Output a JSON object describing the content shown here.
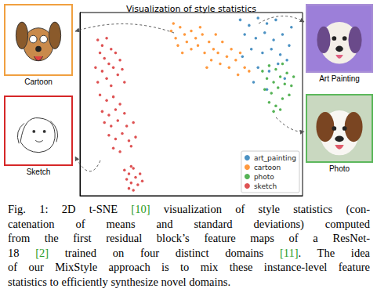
{
  "chart_data": {
    "type": "scatter",
    "title": "Visualization of style statistics",
    "xlim": [
      0,
      100
    ],
    "ylim": [
      0,
      100
    ],
    "tick_labels": false,
    "grid": false,
    "legend": "lower right",
    "series": [
      {
        "name": "art_painting",
        "color": "#1f77b4",
        "values": [
          [
            72,
            96
          ],
          [
            76,
            93
          ],
          [
            80,
            97
          ],
          [
            84,
            94
          ],
          [
            88,
            96
          ],
          [
            74,
            88
          ],
          [
            79,
            86
          ],
          [
            83,
            89
          ],
          [
            87,
            85
          ],
          [
            91,
            88
          ],
          [
            77,
            80
          ],
          [
            82,
            78
          ],
          [
            86,
            80
          ],
          [
            90,
            77
          ],
          [
            94,
            82
          ],
          [
            80,
            70
          ],
          [
            85,
            68
          ],
          [
            89,
            72
          ],
          [
            93,
            74
          ],
          [
            78,
            62
          ],
          [
            84,
            58
          ],
          [
            92,
            64
          ],
          [
            95,
            92
          ],
          [
            73,
            76
          ]
        ]
      },
      {
        "name": "cartoon",
        "color": "#ff7f0e",
        "values": [
          [
            41,
            90
          ],
          [
            43,
            86
          ],
          [
            45,
            92
          ],
          [
            47,
            88
          ],
          [
            44,
            82
          ],
          [
            48,
            84
          ],
          [
            50,
            90
          ],
          [
            52,
            86
          ],
          [
            46,
            78
          ],
          [
            50,
            80
          ],
          [
            53,
            82
          ],
          [
            55,
            88
          ],
          [
            56,
            78
          ],
          [
            58,
            84
          ],
          [
            60,
            80
          ],
          [
            59,
            74
          ],
          [
            62,
            78
          ],
          [
            64,
            84
          ],
          [
            63,
            72
          ],
          [
            66,
            76
          ],
          [
            68,
            80
          ],
          [
            67,
            70
          ],
          [
            70,
            74
          ],
          [
            72,
            78
          ],
          [
            71,
            66
          ],
          [
            74,
            70
          ],
          [
            76,
            68
          ],
          [
            42,
            94
          ],
          [
            54,
            92
          ],
          [
            61,
            88
          ],
          [
            57,
            70
          ]
        ]
      },
      {
        "name": "photo",
        "color": "#2ca02c",
        "values": [
          [
            82,
            68
          ],
          [
            85,
            71
          ],
          [
            88,
            69
          ],
          [
            91,
            72
          ],
          [
            84,
            64
          ],
          [
            87,
            62
          ],
          [
            90,
            65
          ],
          [
            93,
            67
          ],
          [
            83,
            58
          ],
          [
            86,
            56
          ],
          [
            89,
            59
          ],
          [
            92,
            61
          ],
          [
            95,
            60
          ],
          [
            85,
            51
          ],
          [
            88,
            49
          ],
          [
            91,
            53
          ],
          [
            94,
            55
          ],
          [
            87,
            46
          ],
          [
            90,
            47
          ],
          [
            96,
            65
          ]
        ]
      },
      {
        "name": "sketch",
        "color": "#d62728",
        "values": [
          [
            8,
            85
          ],
          [
            10,
            82
          ],
          [
            12,
            86
          ],
          [
            14,
            80
          ],
          [
            9,
            78
          ],
          [
            11,
            75
          ],
          [
            13,
            72
          ],
          [
            16,
            78
          ],
          [
            7,
            70
          ],
          [
            10,
            68
          ],
          [
            15,
            70
          ],
          [
            18,
            74
          ],
          [
            12,
            64
          ],
          [
            8,
            62
          ],
          [
            14,
            60
          ],
          [
            17,
            66
          ],
          [
            20,
            62
          ],
          [
            19,
            69
          ],
          [
            9,
            55
          ],
          [
            12,
            52
          ],
          [
            15,
            54
          ],
          [
            18,
            50
          ],
          [
            10,
            46
          ],
          [
            13,
            44
          ],
          [
            16,
            47
          ],
          [
            20,
            45
          ],
          [
            11,
            40
          ],
          [
            14,
            38
          ],
          [
            17,
            41
          ],
          [
            21,
            38
          ],
          [
            13,
            33
          ],
          [
            16,
            31
          ],
          [
            19,
            34
          ],
          [
            22,
            30
          ],
          [
            15,
            26
          ],
          [
            18,
            24
          ],
          [
            23,
            27
          ],
          [
            25,
            32
          ],
          [
            24,
            40
          ],
          [
            20,
            14
          ],
          [
            22,
            12
          ],
          [
            24,
            15
          ],
          [
            21,
            9
          ],
          [
            23,
            7
          ],
          [
            25,
            10
          ],
          [
            27,
            12
          ],
          [
            22,
            4
          ],
          [
            24,
            3
          ],
          [
            26,
            6
          ],
          [
            28,
            8
          ],
          [
            23,
            16
          ]
        ]
      }
    ]
  },
  "images": [
    {
      "label": "Cartoon",
      "color": "#f0a040"
    },
    {
      "label": "Sketch",
      "color": "#d62728"
    },
    {
      "label": "Art Painting",
      "color": "#a98fd6"
    },
    {
      "label": "Photo",
      "color": "#5cb85c"
    }
  ],
  "caption": {
    "lines": [
      "Fig. 1: 2D t-SNE [10] visualization of style statistics (con-",
      "catenation of means and standard deviations) computed",
      "from the first residual block’s feature maps of a ResNet-",
      "18 [2] trained on four distinct domains [11]. The idea",
      "of our MixStyle approach is to mix these instance-level feature",
      "statistics to efficiently synthesize novel domains."
    ]
  }
}
